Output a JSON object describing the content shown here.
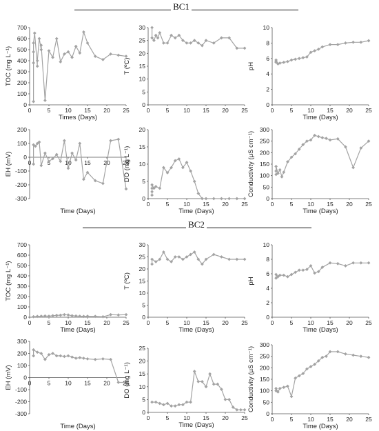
{
  "headings": {
    "bc1": "BC1",
    "bc2": "BC2"
  },
  "style": {
    "series_color": "#a3a3a3",
    "axis_color": "#555555"
  },
  "chart_data": [
    {
      "id": "bc1-toc",
      "type": "line",
      "ylabel": "TOC (mg L⁻¹)",
      "xlabel": "Times (Days)",
      "xlim": [
        0,
        25
      ],
      "ylim": [
        0,
        700
      ],
      "xticks": [
        0,
        5,
        10,
        15,
        20,
        25
      ],
      "yticks": [
        0,
        100,
        200,
        300,
        400,
        500,
        600,
        700
      ],
      "x": [
        1,
        1,
        1,
        1,
        1.3,
        2,
        2,
        2.5,
        3,
        3,
        4,
        5,
        6,
        7,
        8,
        9,
        10,
        11,
        12,
        13,
        14,
        15,
        17,
        19,
        21,
        23,
        25
      ],
      "y": [
        30,
        380,
        480,
        560,
        650,
        350,
        400,
        600,
        500,
        540,
        40,
        490,
        430,
        600,
        390,
        460,
        480,
        430,
        530,
        470,
        660,
        560,
        440,
        410,
        460,
        450,
        440
      ]
    },
    {
      "id": "bc1-t",
      "type": "line",
      "ylabel": "T (ºC)",
      "xlabel": "",
      "xlim": [
        0,
        25
      ],
      "ylim": [
        0,
        30
      ],
      "xticks": [
        0,
        5,
        10,
        15,
        20,
        25
      ],
      "yticks": [
        0,
        5,
        10,
        15,
        20,
        25,
        30
      ],
      "x": [
        1,
        1,
        1.5,
        2,
        2.5,
        3,
        4,
        5,
        6,
        7,
        8,
        9,
        10,
        11,
        12,
        13,
        14,
        15,
        17,
        19,
        21,
        23,
        25
      ],
      "y": [
        30,
        26,
        25,
        27,
        26,
        28,
        24,
        24,
        27,
        26,
        27,
        25,
        24,
        24,
        25,
        24,
        23,
        25,
        24,
        26,
        26,
        22,
        22
      ]
    },
    {
      "id": "bc1-ph",
      "type": "line",
      "ylabel": "pH",
      "xlabel": "Time (Days)",
      "xlim": [
        0,
        25
      ],
      "ylim": [
        0,
        10
      ],
      "xticks": [
        0,
        5,
        10,
        15,
        20,
        25
      ],
      "yticks": [
        0,
        2,
        4,
        6,
        8,
        10
      ],
      "x": [
        1,
        1,
        1,
        1.5,
        2,
        3,
        4,
        5,
        6,
        7,
        8,
        9,
        10,
        11,
        12,
        13,
        15,
        17,
        19,
        21,
        23,
        25
      ],
      "y": [
        5.5,
        5.6,
        5.8,
        5.3,
        5.4,
        5.5,
        5.6,
        5.8,
        5.9,
        6,
        6.1,
        6.2,
        6.8,
        7,
        7.2,
        7.5,
        7.8,
        7.8,
        8,
        8.1,
        8.1,
        8.3
      ]
    },
    {
      "id": "bc1-eh",
      "type": "line",
      "ylabel": "EH (mV)",
      "xlabel": "Time (Days)",
      "xlim": [
        0,
        25
      ],
      "ylim": [
        -300,
        200
      ],
      "xticks": [
        0,
        5,
        10,
        15,
        20,
        25
      ],
      "yticks": [
        -300,
        -200,
        -100,
        0,
        100,
        200
      ],
      "x": [
        1,
        1,
        1.5,
        2,
        2.5,
        3,
        4,
        5,
        6,
        7,
        8,
        9,
        10,
        11,
        12,
        13,
        14,
        15,
        17,
        19,
        21,
        23,
        25
      ],
      "y": [
        -50,
        90,
        80,
        100,
        110,
        -60,
        30,
        -30,
        -10,
        20,
        -30,
        120,
        -80,
        30,
        -20,
        100,
        -160,
        -110,
        -170,
        -190,
        120,
        130,
        -230
      ]
    },
    {
      "id": "bc1-do",
      "type": "line",
      "ylabel": "DO (mg L⁻¹)",
      "xlabel": "Time (Days)",
      "xlim": [
        0,
        25
      ],
      "ylim": [
        0,
        20
      ],
      "xticks": [
        0,
        5,
        10,
        15,
        20,
        25
      ],
      "yticks": [
        0,
        5,
        10,
        15,
        20
      ],
      "x": [
        1,
        1,
        1,
        1,
        1.5,
        2,
        3,
        4,
        5,
        6,
        7,
        8,
        9,
        10,
        11,
        12,
        13,
        14,
        15,
        17,
        19,
        21,
        23,
        25
      ],
      "y": [
        1,
        2,
        3,
        4,
        3,
        3.5,
        3,
        9,
        7.5,
        9,
        11,
        11.5,
        9,
        10.5,
        8,
        5,
        1.5,
        0,
        0,
        0,
        0,
        0,
        0,
        0
      ]
    },
    {
      "id": "bc1-cond",
      "type": "line",
      "ylabel": "Conductivity (µS cm⁻¹)",
      "xlabel": "Time (Days)",
      "xlim": [
        0,
        25
      ],
      "ylim": [
        0,
        300
      ],
      "xticks": [
        0,
        5,
        10,
        15,
        20,
        25
      ],
      "yticks": [
        0,
        50,
        100,
        150,
        200,
        250,
        300
      ],
      "x": [
        1,
        1,
        1,
        1.5,
        2,
        2.5,
        3,
        4,
        5,
        6,
        7,
        8,
        9,
        10,
        11,
        12,
        13,
        14,
        15,
        17,
        19,
        21,
        23,
        25
      ],
      "y": [
        105,
        120,
        140,
        110,
        125,
        95,
        115,
        160,
        180,
        195,
        215,
        235,
        250,
        255,
        275,
        270,
        265,
        262,
        255,
        260,
        225,
        135,
        220,
        250
      ]
    },
    {
      "id": "bc2-toc",
      "type": "line",
      "ylabel": "TOC (mg L⁻¹)",
      "xlabel": "Time (Days)",
      "xlim": [
        0,
        25
      ],
      "ylim": [
        0,
        700
      ],
      "xticks": [
        0,
        5,
        10,
        15,
        20,
        25
      ],
      "yticks": [
        0,
        100,
        200,
        300,
        400,
        500,
        600,
        700
      ],
      "x": [
        1,
        2,
        3,
        4,
        5,
        6,
        7,
        8,
        9,
        10,
        11,
        12,
        13,
        14,
        15,
        17,
        19,
        21,
        23,
        25
      ],
      "y": [
        5,
        8,
        10,
        12,
        10,
        15,
        18,
        20,
        25,
        22,
        15,
        12,
        10,
        8,
        10,
        8,
        5,
        25,
        22,
        25
      ]
    },
    {
      "id": "bc2-t",
      "type": "line",
      "ylabel": "T (ºC)",
      "xlabel": "Time (Days)",
      "xlim": [
        0,
        25
      ],
      "ylim": [
        0,
        30
      ],
      "xticks": [
        0,
        5,
        10,
        15,
        20,
        25
      ],
      "yticks": [
        0,
        5,
        10,
        15,
        20,
        25,
        30
      ],
      "x": [
        1,
        1,
        2,
        3,
        4,
        5,
        6,
        7,
        8,
        9,
        10,
        11,
        12,
        13,
        14,
        15,
        17,
        19,
        21,
        23,
        25
      ],
      "y": [
        22,
        24,
        23,
        24,
        27,
        24,
        23,
        25,
        25,
        24,
        25,
        26,
        27,
        24,
        22,
        24,
        26,
        25,
        24,
        24,
        24
      ]
    },
    {
      "id": "bc2-ph",
      "type": "line",
      "ylabel": "pH",
      "xlabel": "Time (Days)",
      "xlim": [
        0,
        25
      ],
      "ylim": [
        0,
        10
      ],
      "xticks": [
        0,
        5,
        10,
        15,
        20,
        25
      ],
      "yticks": [
        0,
        2,
        4,
        6,
        8,
        10
      ],
      "x": [
        1,
        1,
        1.5,
        2,
        3,
        4,
        5,
        6,
        7,
        8,
        9,
        10,
        11,
        12,
        13,
        15,
        17,
        19,
        21,
        23,
        25
      ],
      "y": [
        5.4,
        5.9,
        5.6,
        5.8,
        5.8,
        5.6,
        5.9,
        6.2,
        6.5,
        6.5,
        6.6,
        7.1,
        6.1,
        6.3,
        6.9,
        7.5,
        7.4,
        7.1,
        7.5,
        7.5,
        7.5
      ]
    },
    {
      "id": "bc2-eh",
      "type": "line",
      "ylabel": "EH (mV)",
      "xlabel": "Time (Days)",
      "xlim": [
        0,
        25
      ],
      "ylim": [
        -300,
        300
      ],
      "xticks": [
        0,
        5,
        10,
        15,
        20,
        25
      ],
      "yticks": [
        -300,
        -200,
        -100,
        0,
        100,
        200,
        300
      ],
      "x": [
        1,
        1,
        2,
        3,
        4,
        5,
        6,
        7,
        8,
        9,
        10,
        11,
        12,
        13,
        14,
        15,
        17,
        19,
        21,
        23,
        25
      ],
      "y": [
        180,
        230,
        210,
        200,
        150,
        190,
        200,
        180,
        180,
        175,
        180,
        170,
        160,
        165,
        160,
        155,
        150,
        155,
        150,
        -40,
        -40
      ]
    },
    {
      "id": "bc2-do",
      "type": "line",
      "ylabel": "DO (mg L⁻¹)",
      "xlabel": "Time (Days)",
      "xlim": [
        0,
        25
      ],
      "ylim": [
        0,
        25
      ],
      "xticks": [
        0,
        5,
        10,
        15,
        20,
        25
      ],
      "yticks": [
        0,
        5,
        10,
        15,
        20,
        25
      ],
      "x": [
        1,
        2,
        3,
        4,
        5,
        6,
        7,
        8,
        9,
        10,
        11,
        12,
        13,
        14,
        15,
        16,
        17,
        18,
        19,
        20,
        21,
        22,
        23,
        24,
        25
      ],
      "y": [
        4,
        4,
        3.5,
        3,
        3.5,
        2.5,
        2.5,
        3,
        3,
        4,
        4,
        16,
        12,
        12,
        10,
        15,
        11,
        11,
        9,
        5,
        5,
        2,
        1,
        1,
        1
      ]
    },
    {
      "id": "bc2-cond",
      "type": "line",
      "ylabel": "Conductivity (µS cm⁻¹)",
      "xlabel": "Time (Days)",
      "xlim": [
        0,
        25
      ],
      "ylim": [
        0,
        300
      ],
      "xticks": [
        0,
        5,
        10,
        15,
        20,
        25
      ],
      "yticks": [
        0,
        50,
        100,
        150,
        200,
        250,
        300
      ],
      "x": [
        1,
        1,
        1.5,
        2,
        3,
        4,
        5,
        6,
        7,
        8,
        9,
        10,
        11,
        12,
        13,
        14,
        15,
        17,
        19,
        21,
        23,
        25
      ],
      "y": [
        100,
        110,
        95,
        110,
        115,
        120,
        75,
        155,
        165,
        175,
        195,
        205,
        215,
        230,
        245,
        250,
        270,
        270,
        260,
        255,
        250,
        245
      ]
    }
  ]
}
